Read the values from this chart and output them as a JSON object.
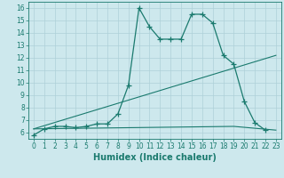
{
  "title": "",
  "xlabel": "Humidex (Indice chaleur)",
  "bg_color": "#cde8ed",
  "line_color": "#1a7a6e",
  "grid_color": "#aed0d8",
  "xlim": [
    -0.5,
    23.5
  ],
  "ylim": [
    5.5,
    16.5
  ],
  "xticks": [
    0,
    1,
    2,
    3,
    4,
    5,
    6,
    7,
    8,
    9,
    10,
    11,
    12,
    13,
    14,
    15,
    16,
    17,
    18,
    19,
    20,
    21,
    22,
    23
  ],
  "yticks": [
    6,
    7,
    8,
    9,
    10,
    11,
    12,
    13,
    14,
    15,
    16
  ],
  "series1_x": [
    0,
    1,
    2,
    3,
    4,
    5,
    6,
    7,
    8,
    9,
    10,
    11,
    12,
    13,
    14,
    15,
    16,
    17,
    18,
    19,
    20,
    21,
    22
  ],
  "series1_y": [
    5.8,
    6.3,
    6.5,
    6.5,
    6.4,
    6.5,
    6.7,
    6.7,
    7.5,
    9.8,
    16.0,
    14.5,
    13.5,
    13.5,
    13.5,
    15.5,
    15.5,
    14.8,
    12.2,
    11.5,
    8.5,
    6.8,
    6.2
  ],
  "line2_x": [
    0,
    23
  ],
  "line2_y": [
    6.3,
    12.2
  ],
  "line3_x": [
    0,
    19,
    23
  ],
  "line3_y": [
    6.3,
    6.5,
    6.2
  ],
  "xlabel_fontsize": 7,
  "tick_fontsize": 5.5
}
